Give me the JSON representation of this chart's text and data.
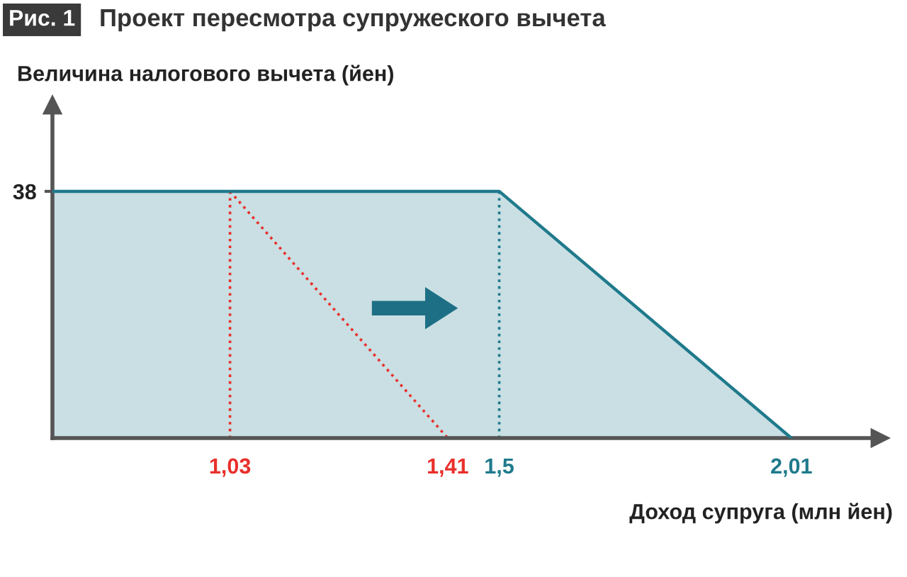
{
  "chart_data": {
    "type": "area",
    "title": "Рис. 1",
    "subtitle": "Проект пересмотра супружеского вычета",
    "ylabel": "Величина налогового вычета (йен)",
    "xlabel": "Доход супруга (млн йен)",
    "xlim": [
      0.72,
      2.15
    ],
    "ylim": [
      0,
      50
    ],
    "xticks": [
      {
        "value": 1.03,
        "label": "1,03"
      },
      {
        "value": 1.41,
        "label": "1,41"
      },
      {
        "value": 1.5,
        "label": "1,5"
      },
      {
        "value": 2.01,
        "label": "2,01"
      }
    ],
    "yticks": [
      38
    ],
    "grid": false,
    "legend": false,
    "series": [
      {
        "color": "#1f7a8c",
        "x": [
          0.72,
          1.5,
          2.01
        ],
        "values": [
          38,
          38,
          0
        ]
      },
      {
        "type": "line",
        "color": "#e8302b",
        "line_style": "dotted",
        "x": [
          1.03,
          1.41
        ],
        "values": [
          38,
          0
        ]
      },
      {
        "type": "line",
        "color": "#e8302b",
        "line_style": "dotted",
        "x": [
          1.03,
          1.03
        ],
        "values": [
          0,
          38
        ]
      },
      {
        "type": "line",
        "color": "#1f7a8c",
        "line_style": "dotted",
        "x": [
          1.5,
          1.5
        ],
        "values": [
          0,
          38
        ]
      }
    ]
  }
}
